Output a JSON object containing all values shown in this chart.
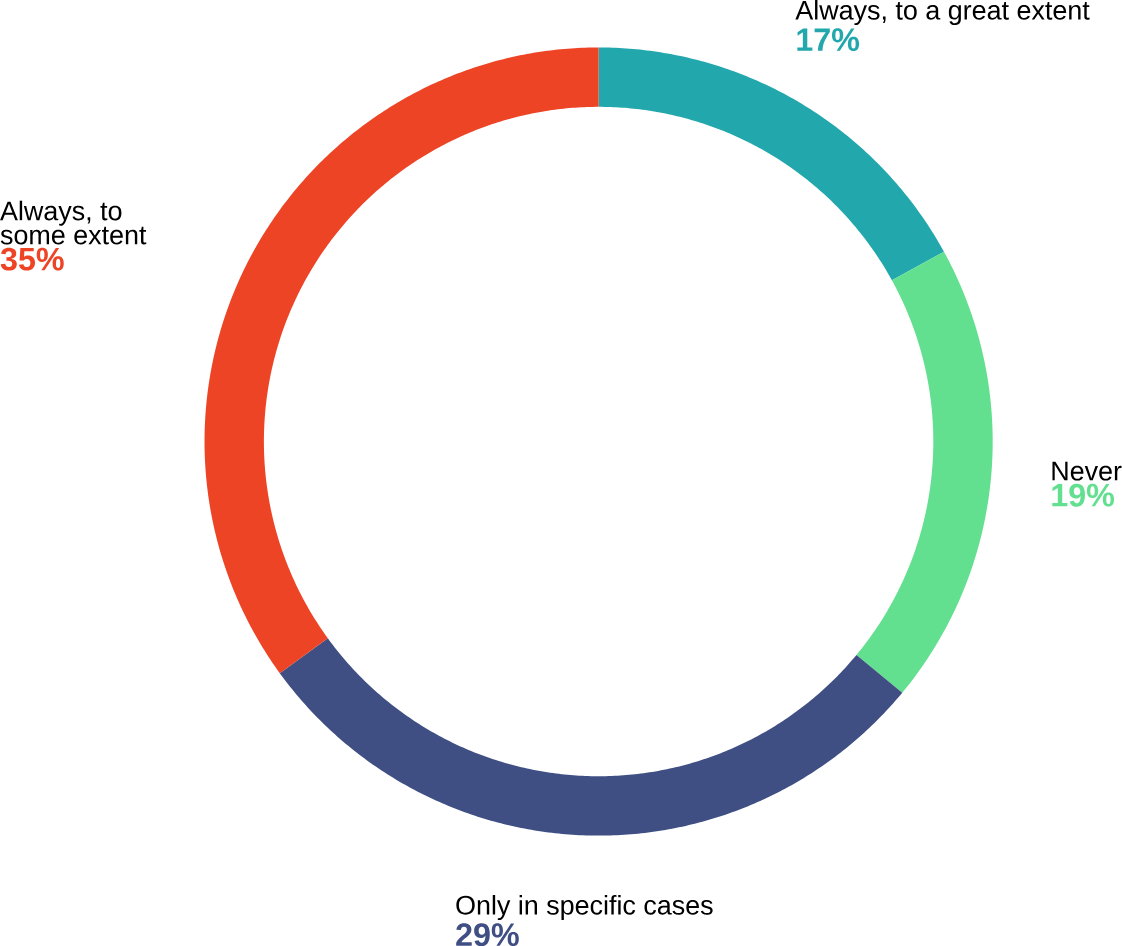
{
  "chart_data": {
    "type": "donut",
    "categories": [
      "Always, to a great extent",
      "Never",
      "Only in specific cases",
      "Always, to some extent"
    ],
    "values": [
      17,
      19,
      29,
      35
    ],
    "value_labels": [
      "17%",
      "19%",
      "29%",
      "35%"
    ],
    "colors": [
      "#22a7ad",
      "#62e08f",
      "#3f4f84",
      "#ee4426"
    ]
  }
}
